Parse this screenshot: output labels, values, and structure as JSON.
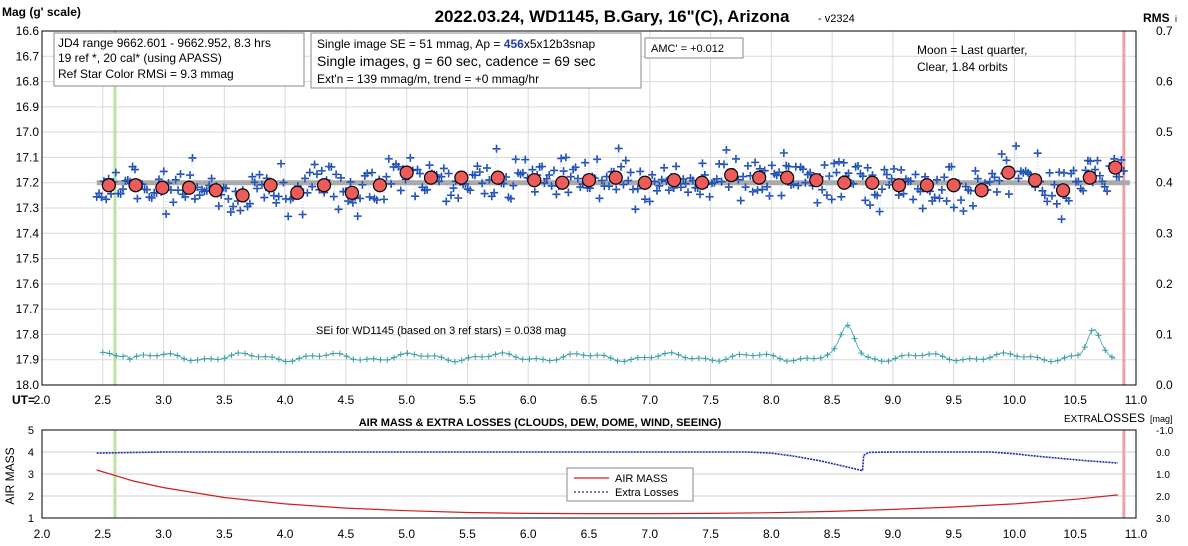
{
  "header": {
    "title": "2022.03.24, WD1145, B.Gary, 16\"(C), Arizona",
    "version": "- v2324",
    "left_axis_label": "Mag (g' scale)",
    "right_axis_label": "RMS",
    "right_axis_label_suffix": "i"
  },
  "info_boxes": {
    "box1": [
      "JD4 range 9662.601 - 9662.952, 8.3 hrs",
      "19 ref *, 20 cal* (using APASS)",
      "Ref Star Color RMSi = 9.3 mmag"
    ],
    "box2_line1_pre": "Single image SE = 51 mmag, Ap = ",
    "box2_line1_ap": "456",
    "box2_line1_post": "x5x12b3snap",
    "box2_line2": "Single images, g = 60 sec, cadence = 69 sec",
    "box2_line3": "Ext'n = 139 mmag/m, trend = +0 mmag/hr",
    "amc": "AMC' = +0.012",
    "moon": [
      "Moon = Last quarter,",
      "Clear,  1.84 orbits"
    ],
    "sei": "SEi for WD1145 (based on 3 ref stars) = 0.038 mag"
  },
  "bottom_panel": {
    "title": "AIR MASS & EXTRA LOSSES (CLOUDS, DEW, DOME, WIND, SEEING)",
    "left_label": "AIR MASS",
    "right_label_small": "EXTRA",
    "right_label_big": "LOSSES",
    "right_label_unit": "[mag]",
    "legend": [
      "AIR MASS",
      "Extra Losses"
    ]
  },
  "colors": {
    "points": "#1f4fb5",
    "binned_fill": "#ee5b5b",
    "trend": "#aaaaaa",
    "rms": "#3a9fa7",
    "airmass": "#d11f1f",
    "losses": "#1b2ea7",
    "green_line": "#bde39c",
    "pink_line": "#f2a0a8"
  },
  "chart_data": [
    {
      "type": "scatter",
      "title": "2022.03.24, WD1145, B.Gary, 16\"(C), Arizona",
      "xlabel": "UT=",
      "ylabel": "Mag (g' scale)",
      "xlim": [
        2.0,
        11.0
      ],
      "ylim": [
        18.0,
        16.6
      ],
      "y_ticks": [
        "16.6",
        "16.7",
        "16.8",
        "16.9",
        "17.0",
        "17.1",
        "17.2",
        "17.3",
        "17.4",
        "17.5",
        "17.6",
        "17.7",
        "17.8",
        "17.9",
        "18.0"
      ],
      "x_ticks": [
        "2.0",
        "2.5",
        "3.0",
        "3.5",
        "4.0",
        "4.5",
        "5.0",
        "5.5",
        "6.0",
        "6.5",
        "7.0",
        "7.5",
        "8.0",
        "8.5",
        "9.0",
        "9.5",
        "10.0",
        "10.5",
        "11.0"
      ],
      "right_axis": {
        "label": "RMS",
        "lim": [
          0.0,
          0.7
        ],
        "ticks": [
          "0.0",
          "0.1",
          "0.2",
          "0.3",
          "0.4",
          "0.5",
          "0.6",
          "0.7"
        ]
      },
      "grid": true,
      "vertical_markers": [
        2.6,
        10.9
      ],
      "trend_line": {
        "x": [
          2.45,
          10.95
        ],
        "y": [
          17.2,
          17.2
        ]
      },
      "binned_series": {
        "name": "binned",
        "x": [
          2.55,
          2.77,
          2.99,
          3.21,
          3.43,
          3.65,
          3.88,
          4.1,
          4.32,
          4.55,
          4.78,
          5.0,
          5.2,
          5.45,
          5.75,
          6.05,
          6.28,
          6.5,
          6.72,
          6.96,
          7.2,
          7.43,
          7.67,
          7.9,
          8.13,
          8.37,
          8.6,
          8.83,
          9.05,
          9.28,
          9.5,
          9.73,
          9.95,
          10.17,
          10.4,
          10.62,
          10.83
        ],
        "y": [
          17.21,
          17.21,
          17.22,
          17.22,
          17.23,
          17.25,
          17.21,
          17.24,
          17.21,
          17.24,
          17.21,
          17.16,
          17.18,
          17.18,
          17.18,
          17.19,
          17.2,
          17.19,
          17.18,
          17.2,
          17.19,
          17.2,
          17.17,
          17.18,
          17.18,
          17.19,
          17.2,
          17.2,
          17.21,
          17.21,
          17.21,
          17.23,
          17.16,
          17.19,
          17.23,
          17.18,
          17.14
        ]
      },
      "points": {
        "name": "single images",
        "x_range": [
          2.45,
          10.9
        ],
        "center": 17.2,
        "scatter_sd": 0.05
      },
      "rms_series": {
        "name": "SEi",
        "mean": 0.055
      }
    },
    {
      "type": "line",
      "title": "AIR MASS & EXTRA LOSSES (CLOUDS, DEW, DOME, WIND, SEEING)",
      "xlim": [
        2.0,
        11.0
      ],
      "ylim": [
        1,
        5
      ],
      "y_ticks": [
        "1",
        "2",
        "3",
        "4",
        "5"
      ],
      "x_ticks": [
        "2.0",
        "2.5",
        "3.0",
        "3.5",
        "4.0",
        "4.5",
        "5.0",
        "5.5",
        "6.0",
        "6.5",
        "7.0",
        "7.5",
        "8.0",
        "8.5",
        "9.0",
        "9.5",
        "10.0",
        "10.5",
        "11.0"
      ],
      "right_axis": {
        "label": "EXTRA LOSSES [mag]",
        "lim": [
          3.0,
          -1.0
        ],
        "ticks": [
          "-1.0",
          "0.0",
          "1.0",
          "2.0",
          "3.0"
        ]
      },
      "vertical_markers": [
        2.6,
        10.9
      ],
      "series": [
        {
          "name": "AIR MASS",
          "x": [
            2.45,
            2.75,
            3.0,
            3.5,
            4.0,
            4.5,
            5.0,
            5.5,
            6.0,
            6.5,
            7.0,
            7.5,
            8.0,
            8.5,
            9.0,
            9.5,
            10.0,
            10.5,
            10.85
          ],
          "y": [
            3.18,
            2.68,
            2.38,
            1.93,
            1.64,
            1.45,
            1.33,
            1.25,
            1.21,
            1.2,
            1.2,
            1.21,
            1.24,
            1.3,
            1.39,
            1.5,
            1.64,
            1.85,
            2.05
          ]
        },
        {
          "name": "Extra Losses",
          "x": [
            2.45,
            3.0,
            4.0,
            5.0,
            6.0,
            7.0,
            7.8,
            8.0,
            8.2,
            8.4,
            8.6,
            8.75,
            8.76,
            8.8,
            9.0,
            9.5,
            9.8,
            10.0,
            10.2,
            10.4,
            10.6,
            10.85
          ],
          "y": [
            0.05,
            0.0,
            0.0,
            0.0,
            0.0,
            0.0,
            0.0,
            0.05,
            0.2,
            0.4,
            0.65,
            0.85,
            0.15,
            0.02,
            0.0,
            0.0,
            0.0,
            0.08,
            0.2,
            0.3,
            0.4,
            0.5
          ]
        }
      ]
    }
  ]
}
